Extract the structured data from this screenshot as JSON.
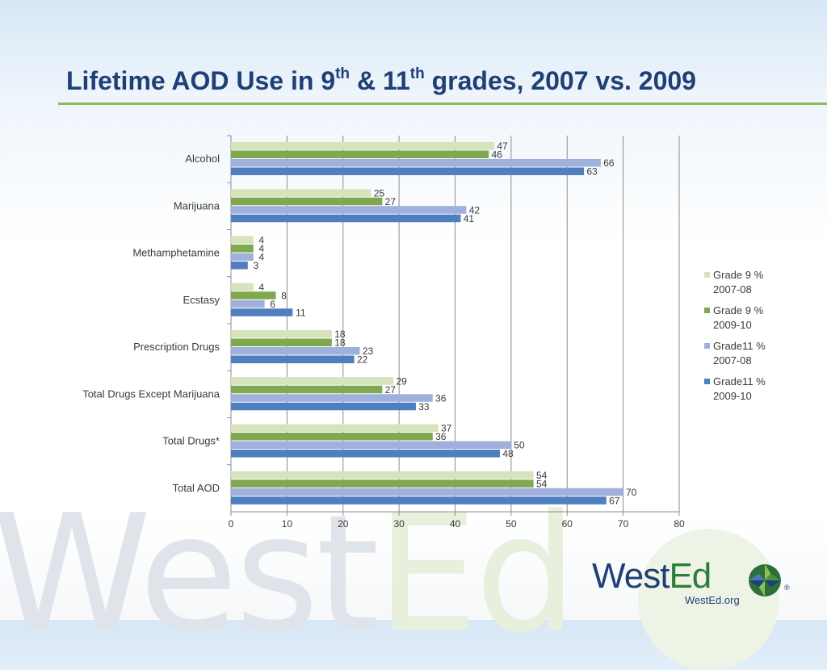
{
  "slide": {
    "title_parts": {
      "a": "Lifetime AOD Use in 9",
      "sup1": "th",
      "b": " & 11",
      "sup2": "th",
      "c": " grades, 2007 vs. 2009"
    }
  },
  "branding": {
    "watermark_a": "West",
    "watermark_b": "Ed",
    "logo_a": "West",
    "logo_b": "Ed",
    "logo_url": "WestEd.org",
    "registered": "®",
    "globe_icon": "globe-icon"
  },
  "colors": {
    "title": "#1f3f77",
    "accent_rule": "#8fb85a",
    "grid": "#8c8c8c"
  },
  "chart_data": {
    "type": "bar",
    "orientation": "horizontal",
    "categories": [
      "Alcohol",
      "Marijuana",
      "Methamphetamine",
      "Ecstasy",
      "Prescription Drugs",
      "Total Drugs Except Marijuana",
      "Total Drugs*",
      "Total AOD"
    ],
    "series": [
      {
        "name": "Grade 9 %\n2007-08",
        "color": "#d6e4bc",
        "values": [
          47,
          25,
          4,
          4,
          18,
          29,
          37,
          54
        ]
      },
      {
        "name": "Grade 9 %\n2009-10",
        "color": "#7fa84f",
        "values": [
          46,
          27,
          4,
          8,
          18,
          27,
          36,
          54
        ]
      },
      {
        "name": "Grade11 %\n2007-08",
        "color": "#9fb0dd",
        "values": [
          66,
          42,
          4,
          6,
          23,
          36,
          50,
          70
        ]
      },
      {
        "name": "Grade11 %\n2009-10",
        "color": "#4f7fbe",
        "values": [
          63,
          41,
          3,
          11,
          22,
          33,
          48,
          67
        ]
      }
    ],
    "xlim": [
      0,
      80
    ],
    "xticks": [
      0,
      10,
      20,
      30,
      40,
      50,
      60,
      70,
      80
    ],
    "grid": true,
    "legend_position": "right",
    "data_labels": true
  }
}
